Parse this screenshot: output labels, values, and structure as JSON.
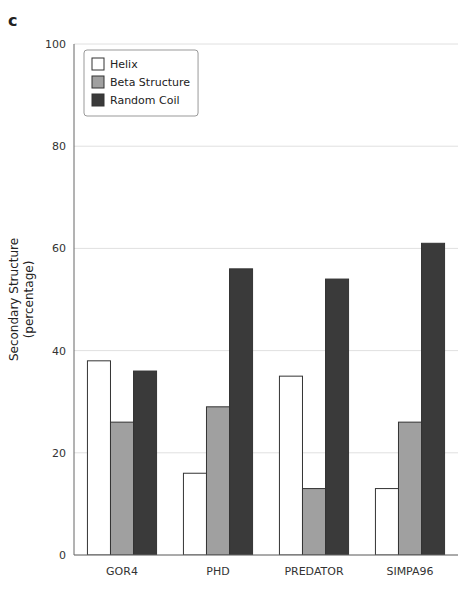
{
  "chart_data": {
    "type": "bar",
    "title": "c",
    "categories": [
      "GOR4",
      "PHD",
      "PREDATOR",
      "SIMPA96"
    ],
    "series": [
      {
        "name": "Helix",
        "color": "#ffffff",
        "values": [
          38,
          16,
          35,
          13
        ]
      },
      {
        "name": "Beta Structure",
        "color": "#a0a0a0",
        "values": [
          26,
          29,
          13,
          26
        ]
      },
      {
        "name": "Random Coil",
        "color": "#3a3a3a",
        "values": [
          36,
          56,
          54,
          61
        ]
      }
    ],
    "ylabel": "Secondary Structure\n(percentage)",
    "ylim": [
      0,
      100
    ],
    "yticks": [
      0,
      20,
      40,
      60,
      80,
      100
    ],
    "grid": true,
    "legend": "upper left"
  }
}
